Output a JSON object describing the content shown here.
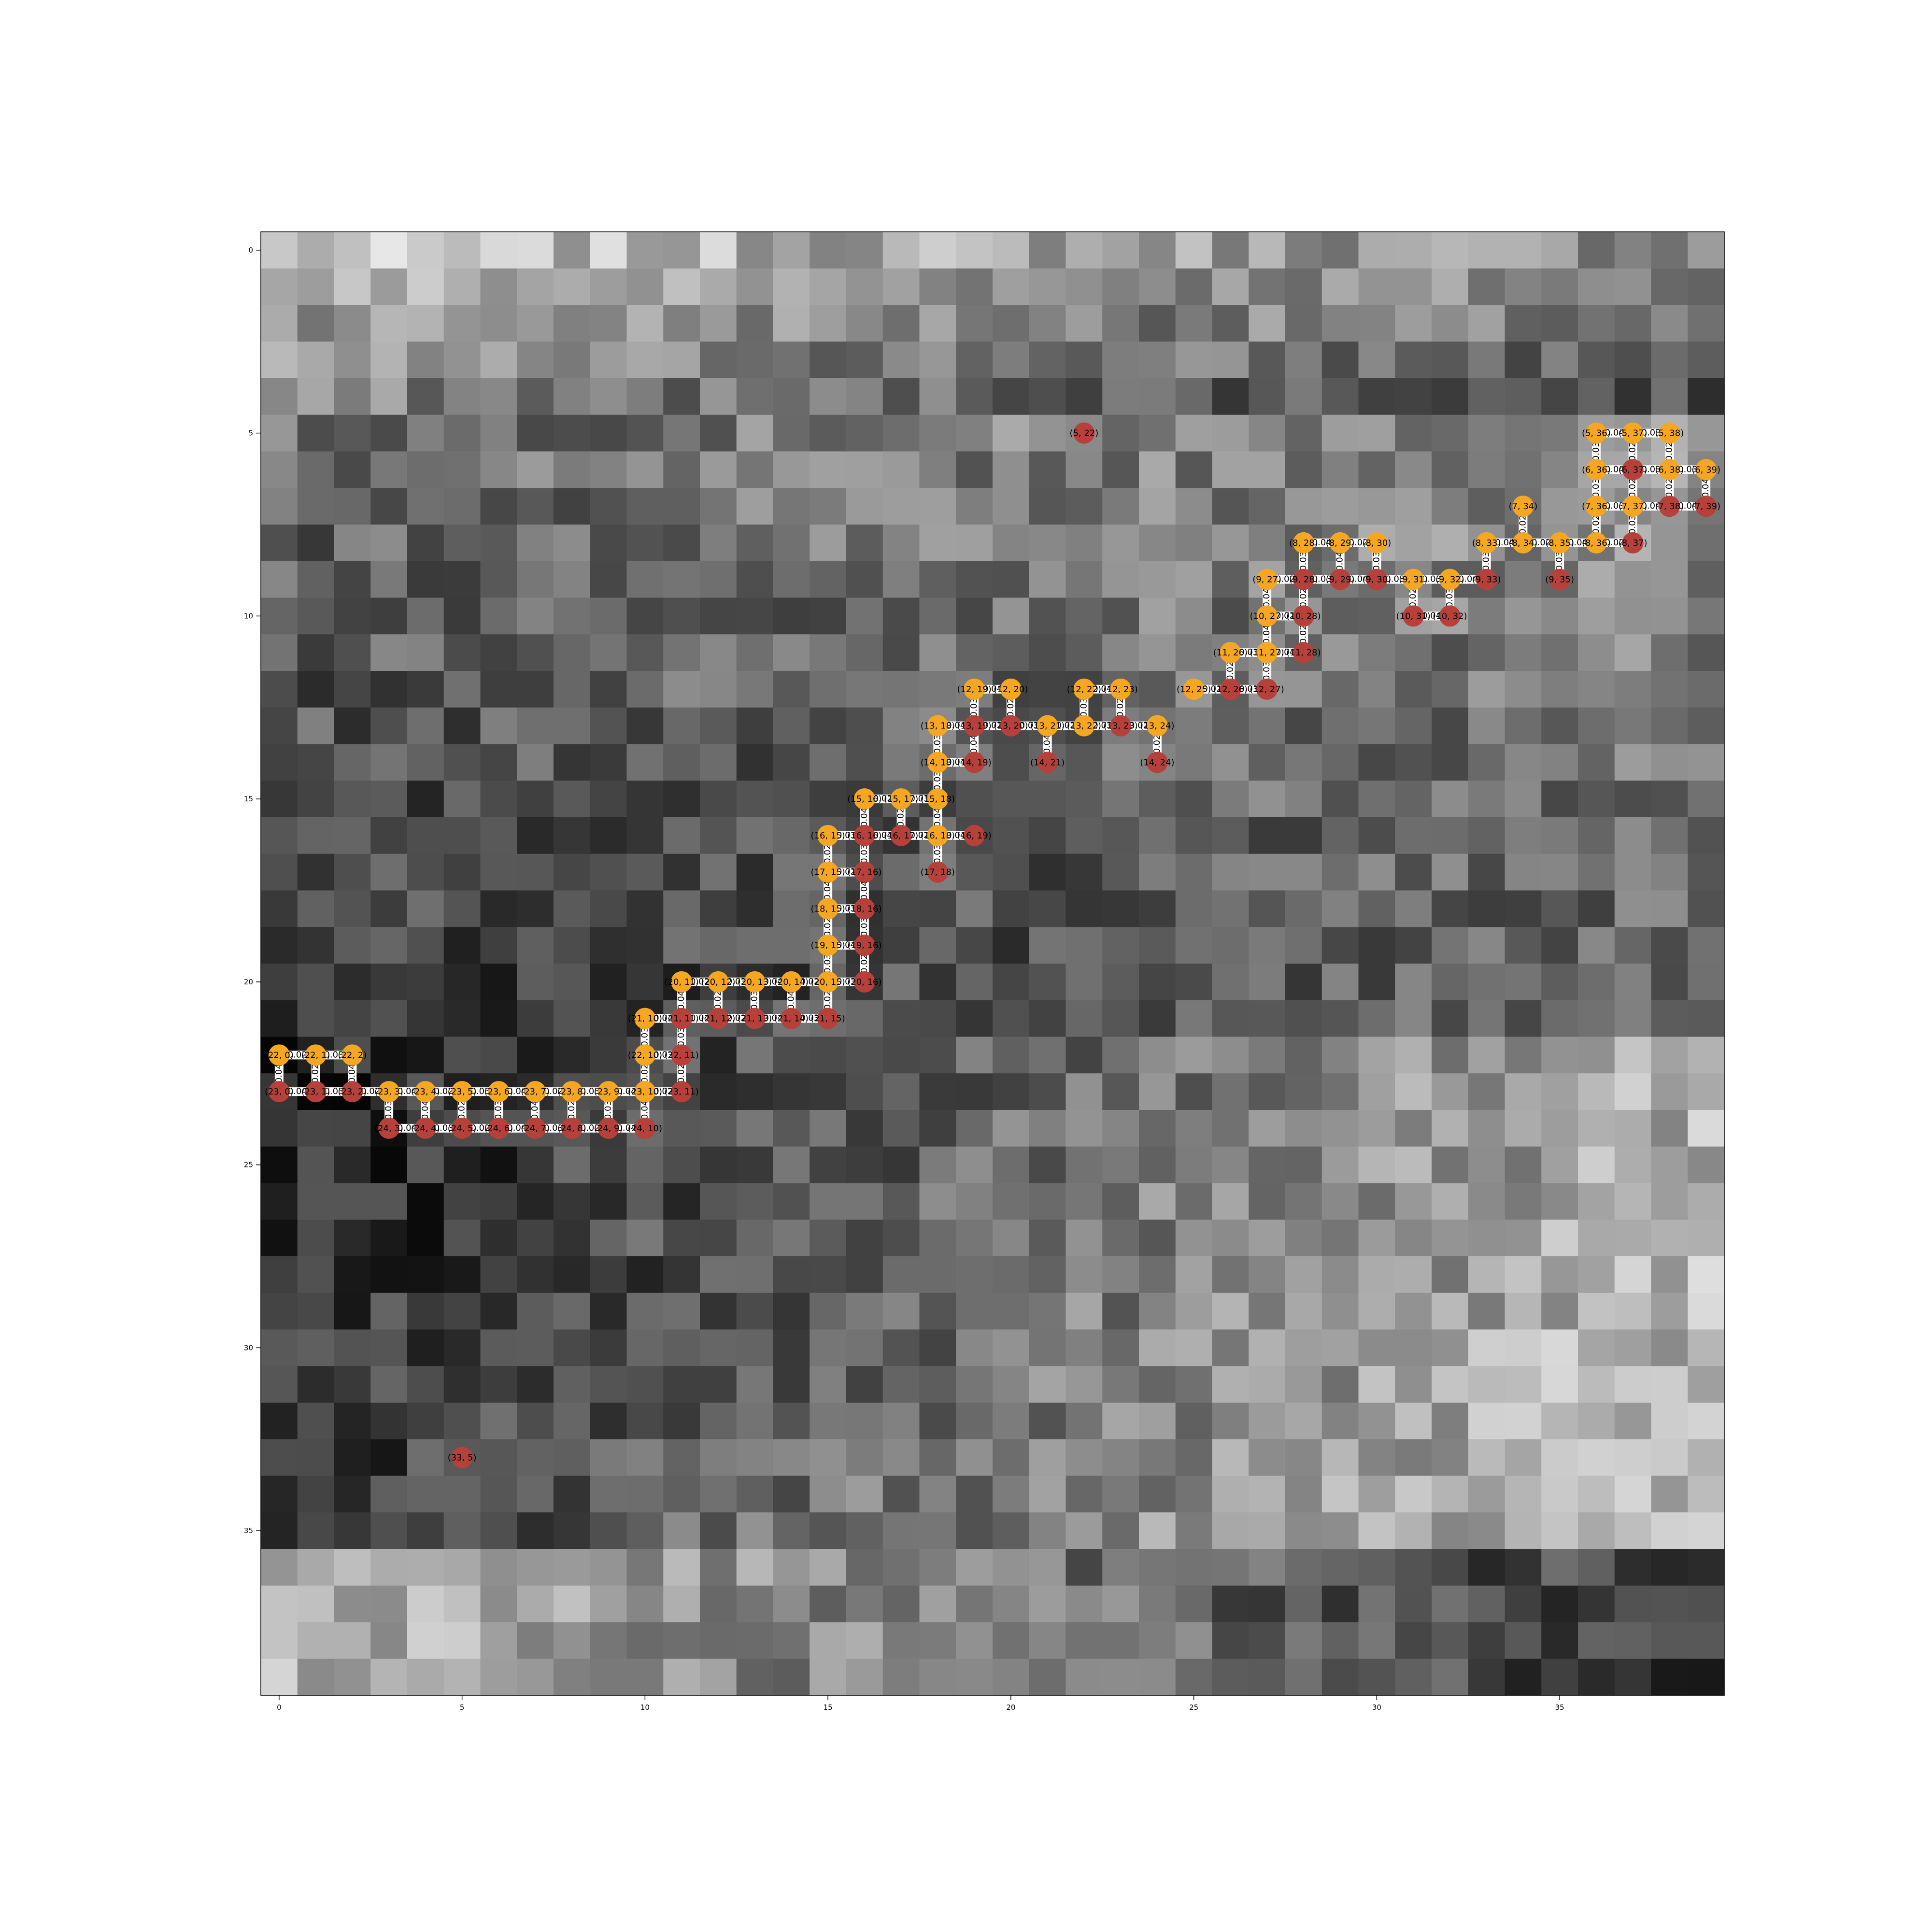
{
  "chart_data": {
    "type": "heatmap",
    "grid": {
      "rows": 40,
      "cols": 40,
      "colormap": "gray",
      "seed": 7
    },
    "x_ticks": [
      "0",
      "5",
      "10",
      "15",
      "20",
      "25",
      "30",
      "35"
    ],
    "y_ticks": [
      "0",
      "5",
      "10",
      "15",
      "20",
      "25",
      "30",
      "35"
    ],
    "node_colors": {
      "orange": "#f5a623",
      "red": "#b5413a"
    },
    "visited_nodes": [
      [
        5,
        37
      ],
      [
        5,
        36
      ],
      [
        5,
        38
      ],
      [
        6,
        36
      ],
      [
        6,
        37
      ],
      [
        6,
        38
      ],
      [
        6,
        39
      ],
      [
        7,
        36
      ],
      [
        7,
        37
      ],
      [
        7,
        34
      ],
      [
        8,
        33
      ],
      [
        8,
        34
      ],
      [
        8,
        35
      ],
      [
        8,
        36
      ],
      [
        8,
        28
      ],
      [
        8,
        29
      ],
      [
        8,
        30
      ],
      [
        9,
        27
      ],
      [
        9,
        31
      ],
      [
        9,
        32
      ],
      [
        10,
        27
      ],
      [
        11,
        26
      ],
      [
        11,
        27
      ],
      [
        12,
        25
      ],
      [
        12,
        19
      ],
      [
        12,
        20
      ],
      [
        12,
        22
      ],
      [
        12,
        23
      ],
      [
        13,
        18
      ],
      [
        13,
        21
      ],
      [
        13,
        22
      ],
      [
        13,
        24
      ],
      [
        14,
        18
      ],
      [
        15,
        16
      ],
      [
        15,
        17
      ],
      [
        15,
        18
      ],
      [
        16,
        15
      ],
      [
        16,
        18
      ],
      [
        17,
        15
      ],
      [
        18,
        15
      ],
      [
        19,
        15
      ],
      [
        20,
        11
      ],
      [
        20,
        12
      ],
      [
        20,
        13
      ],
      [
        20,
        14
      ],
      [
        20,
        15
      ],
      [
        21,
        10
      ],
      [
        22,
        0
      ],
      [
        22,
        1
      ],
      [
        22,
        2
      ],
      [
        22,
        10
      ],
      [
        23,
        3
      ],
      [
        23,
        4
      ],
      [
        23,
        5
      ],
      [
        23,
        6
      ],
      [
        23,
        7
      ],
      [
        23,
        8
      ],
      [
        23,
        9
      ],
      [
        23,
        10
      ]
    ],
    "terminal_nodes": [
      [
        5,
        22
      ],
      [
        6,
        37
      ],
      [
        7,
        38
      ],
      [
        7,
        39
      ],
      [
        8,
        37
      ],
      [
        9,
        28
      ],
      [
        9,
        29
      ],
      [
        9,
        30
      ],
      [
        9,
        33
      ],
      [
        9,
        35
      ],
      [
        10,
        28
      ],
      [
        10,
        31
      ],
      [
        10,
        32
      ],
      [
        11,
        28
      ],
      [
        12,
        26
      ],
      [
        12,
        27
      ],
      [
        13,
        19
      ],
      [
        13,
        20
      ],
      [
        13,
        23
      ],
      [
        14,
        19
      ],
      [
        14,
        21
      ],
      [
        14,
        24
      ],
      [
        16,
        16
      ],
      [
        16,
        17
      ],
      [
        16,
        19
      ],
      [
        17,
        16
      ],
      [
        17,
        18
      ],
      [
        18,
        16
      ],
      [
        19,
        16
      ],
      [
        20,
        16
      ],
      [
        21,
        11
      ],
      [
        21,
        12
      ],
      [
        21,
        13
      ],
      [
        21,
        14
      ],
      [
        21,
        15
      ],
      [
        22,
        11
      ],
      [
        23,
        0
      ],
      [
        23,
        1
      ],
      [
        23,
        2
      ],
      [
        23,
        11
      ],
      [
        24,
        3
      ],
      [
        24,
        4
      ],
      [
        24,
        5
      ],
      [
        24,
        6
      ],
      [
        24,
        7
      ],
      [
        24,
        8
      ],
      [
        24,
        9
      ],
      [
        24,
        10
      ],
      [
        33,
        5
      ]
    ],
    "edge_weights": [
      "0.03",
      "0.02",
      "0.04"
    ]
  }
}
